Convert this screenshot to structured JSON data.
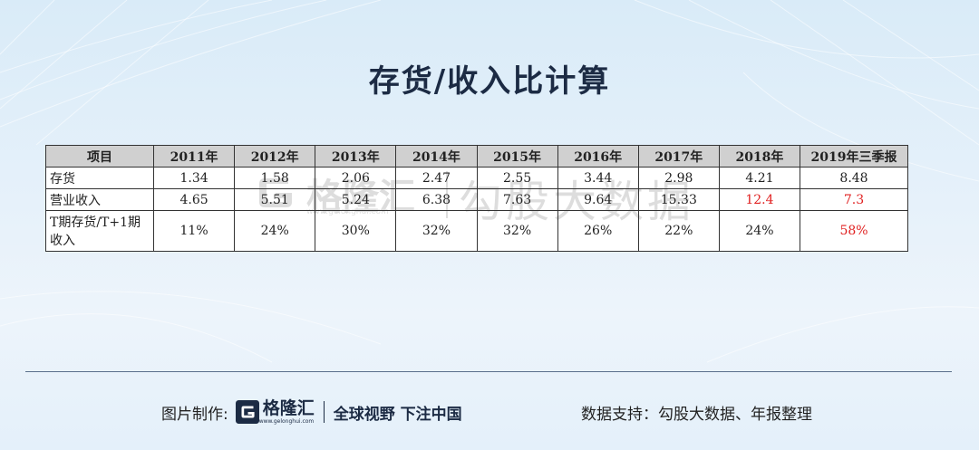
{
  "title": "存货/收入比计算",
  "table": {
    "header": [
      "项目",
      "2011年",
      "2012年",
      "2013年",
      "2014年",
      "2015年",
      "2016年",
      "2017年",
      "2018年",
      "2019年三季报"
    ],
    "rows": [
      {
        "label": "存货",
        "values": [
          "1.34",
          "1.58",
          "2.06",
          "2.47",
          "2.55",
          "3.44",
          "2.98",
          "4.21",
          "8.48"
        ]
      },
      {
        "label": "营业收入",
        "values": [
          "4.65",
          "5.51",
          "5.24",
          "6.38",
          "7.63",
          "9.64",
          "15.33",
          "12.4",
          "7.3"
        ]
      },
      {
        "label": "T期存货/T+1期收入",
        "values": [
          "11%",
          "24%",
          "30%",
          "32%",
          "32%",
          "26%",
          "22%",
          "24%",
          "58%"
        ]
      }
    ],
    "highlight_color": "#e02020"
  },
  "watermark": {
    "brand": "格隆汇",
    "url": "www.gelonghui.com",
    "text": "勾股大数据"
  },
  "footer": {
    "made_by_label": "图片制作:",
    "brand": "格隆汇",
    "brand_url": "www.gelonghui.com",
    "slogan": "全球视野 下注中国",
    "support": "数据支持：勾股大数据、年报整理"
  }
}
